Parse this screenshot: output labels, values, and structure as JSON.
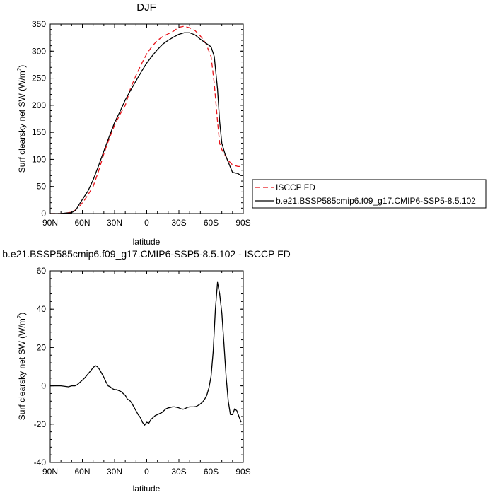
{
  "chart_data": [
    {
      "type": "line",
      "title": "DJF",
      "xlabel": "latitude",
      "ylabel_main": "Surf clearsky net SW (W/m",
      "ylabel_sup": "2",
      "ylabel_close": ")",
      "xlim": [
        90,
        -90
      ],
      "ylim": [
        0,
        350
      ],
      "x_ticks": [
        {
          "value": 90,
          "label": "90N"
        },
        {
          "value": 60,
          "label": "60N"
        },
        {
          "value": 30,
          "label": "30N"
        },
        {
          "value": 0,
          "label": "0"
        },
        {
          "value": -30,
          "label": "30S"
        },
        {
          "value": -60,
          "label": "60S"
        },
        {
          "value": -90,
          "label": "90S"
        }
      ],
      "y_ticks": [
        0,
        50,
        100,
        150,
        200,
        250,
        300,
        350
      ],
      "legend": "right-outside",
      "series": [
        {
          "name": "ISCCP FD",
          "color": "#e8141b",
          "dash": "dashed",
          "x": [
            90,
            80,
            75,
            72,
            70,
            67,
            65,
            62,
            58,
            55,
            50,
            45,
            40,
            35,
            30,
            25,
            20,
            15,
            10,
            5,
            0,
            -5,
            -10,
            -15,
            -20,
            -25,
            -30,
            -35,
            -40,
            -45,
            -50,
            -55,
            -60,
            -63,
            -66,
            -68,
            -70,
            -73,
            -76,
            -80,
            -85,
            -88
          ],
          "y": [
            0,
            0,
            1,
            2,
            3,
            6,
            9,
            15,
            25,
            34,
            50,
            78,
            110,
            138,
            163,
            183,
            200,
            232,
            255,
            276,
            295,
            309,
            320,
            327,
            332,
            337,
            344,
            346,
            343,
            338,
            328,
            315,
            290,
            240,
            170,
            130,
            118,
            108,
            98,
            90,
            87,
            87
          ]
        },
        {
          "name": "b.e21.BSSP585cmip6.f09_g17.CMIP6-SSP5-8.5.102",
          "color": "#000000",
          "dash": "solid",
          "x": [
            90,
            80,
            75,
            72,
            70,
            67,
            65,
            62,
            58,
            55,
            50,
            45,
            40,
            35,
            30,
            25,
            20,
            15,
            10,
            5,
            0,
            -5,
            -10,
            -15,
            -20,
            -25,
            -30,
            -35,
            -40,
            -45,
            -50,
            -55,
            -60,
            -63,
            -66,
            -68,
            -70,
            -73,
            -76,
            -80,
            -85,
            -88
          ],
          "y": [
            0,
            0,
            1,
            1,
            2,
            5,
            10,
            20,
            32,
            41,
            62,
            88,
            115,
            142,
            168,
            188,
            210,
            228,
            245,
            262,
            278,
            291,
            303,
            313,
            320,
            326,
            331,
            334,
            334,
            330,
            322,
            315,
            308,
            290,
            230,
            170,
            130,
            110,
            95,
            76,
            74,
            70
          ]
        }
      ]
    },
    {
      "type": "line",
      "title": "b.e21.BSSP585cmip6.f09_g17.CMIP6-SSP5-8.5.102 - ISCCP FD",
      "xlabel": "latitude",
      "ylabel_main": "Surf clearsky net SW (W/m",
      "ylabel_sup": "2",
      "ylabel_close": ")",
      "xlim": [
        90,
        -90
      ],
      "ylim": [
        -40,
        60
      ],
      "x_ticks": [
        {
          "value": 90,
          "label": "90N"
        },
        {
          "value": 60,
          "label": "60N"
        },
        {
          "value": 30,
          "label": "30N"
        },
        {
          "value": 0,
          "label": "0"
        },
        {
          "value": -30,
          "label": "30S"
        },
        {
          "value": -60,
          "label": "60S"
        },
        {
          "value": -90,
          "label": "90S"
        }
      ],
      "y_ticks": [
        -40,
        -20,
        0,
        20,
        40,
        60
      ],
      "series": [
        {
          "color": "#000000",
          "dash": "solid",
          "x": [
            90,
            80,
            73,
            70,
            67,
            65,
            62,
            58,
            55,
            52,
            50,
            48,
            46,
            44,
            42,
            40,
            38,
            36,
            34,
            32,
            30,
            28,
            26,
            24,
            22,
            20,
            18,
            16,
            14,
            12,
            10,
            8,
            6,
            4,
            2,
            0,
            -2,
            -4,
            -6,
            -8,
            -10,
            -12,
            -14,
            -16,
            -18,
            -20,
            -22,
            -24,
            -26,
            -28,
            -30,
            -32,
            -34,
            -36,
            -38,
            -40,
            -42,
            -44,
            -46,
            -48,
            -50,
            -52,
            -54,
            -56,
            -58,
            -60,
            -62,
            -64,
            -66,
            -68,
            -70,
            -72,
            -74,
            -76,
            -78,
            -80,
            -82,
            -84,
            -86,
            -88
          ],
          "y": [
            0,
            0,
            -0.5,
            0,
            0,
            0.5,
            2,
            4,
            6,
            8,
            9.5,
            10.5,
            10,
            8.5,
            6.5,
            4.5,
            2,
            0,
            -0.5,
            -1.5,
            -2,
            -2,
            -2.5,
            -3,
            -4,
            -5,
            -7,
            -7.5,
            -9,
            -11,
            -13,
            -15,
            -16.5,
            -19,
            -20.5,
            -19,
            -19.5,
            -17.5,
            -16.5,
            -15.5,
            -15,
            -14.5,
            -14,
            -13,
            -12,
            -11.5,
            -11.3,
            -11,
            -11,
            -11.2,
            -11.5,
            -12,
            -12.2,
            -11.8,
            -11.2,
            -11,
            -11,
            -11,
            -10.8,
            -10.2,
            -9.5,
            -8.5,
            -7,
            -5,
            -1,
            5,
            18,
            40,
            54,
            48,
            38,
            22,
            5,
            -8,
            -15,
            -15,
            -12,
            -13,
            -16,
            -19
          ]
        }
      ]
    }
  ]
}
